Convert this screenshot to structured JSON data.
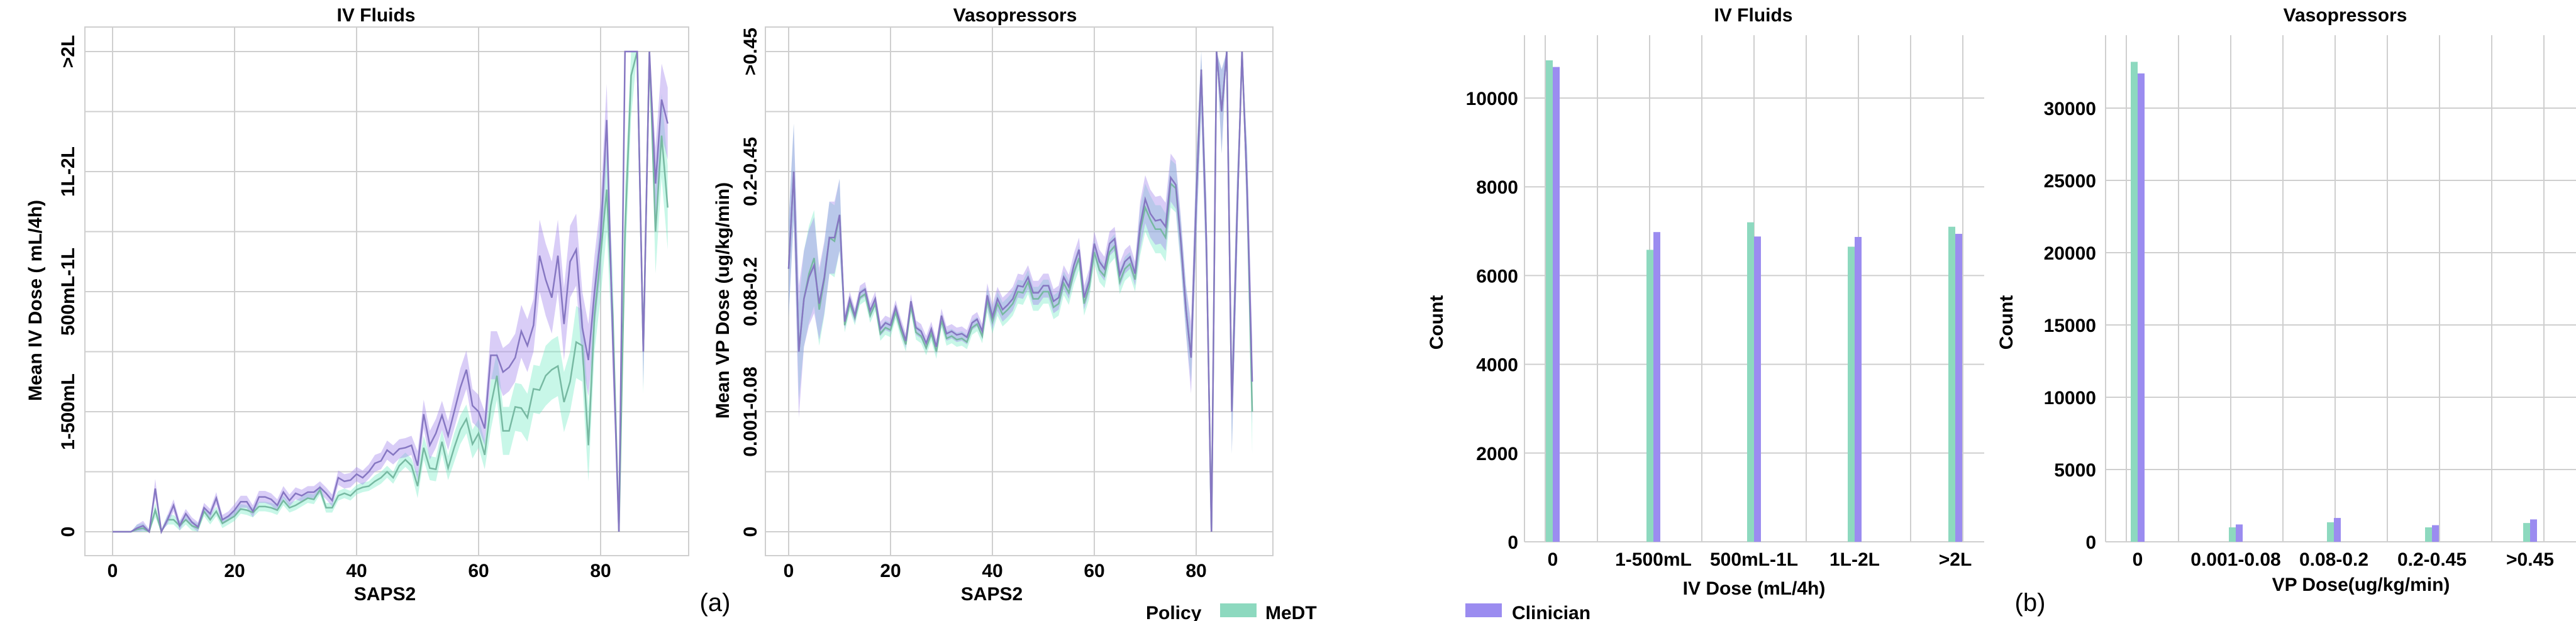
{
  "colors": {
    "medt_fill": "#8dd9bf",
    "medt_band": "rgba(110,235,195,0.38)",
    "medt_line": "#77b9a2",
    "clinician_fill": "#9b8cf0",
    "clinician_band": "rgba(165,135,235,0.42)",
    "clinician_line": "#8677c2",
    "grid": "#cfcfcf"
  },
  "legend": {
    "title": "Policy",
    "items": [
      {
        "name": "MeDT",
        "color": "#8dd9bf"
      },
      {
        "name": "Clinician",
        "color": "#9b8cf0"
      }
    ]
  },
  "panel_labels": {
    "a": "(a)",
    "b": "(b)"
  },
  "chart_data": [
    {
      "type": "line",
      "title": "IV Fluids",
      "xlabel": "SAPS2",
      "ylabel": "Mean IV Dose ( mL/4h)",
      "xlim": [
        -5,
        95
      ],
      "ylim": [
        -0.2,
        4.2
      ],
      "grid": true,
      "xticks": [
        0,
        20,
        40,
        60,
        80
      ],
      "yticks": [
        {
          "value": 0,
          "label": "0"
        },
        {
          "value": 1,
          "label": "1-500mL"
        },
        {
          "value": 2,
          "label": "500mL-1L"
        },
        {
          "value": 3,
          "label": "1L-2L"
        },
        {
          "value": 4,
          "label": ">2L"
        }
      ],
      "x_start": 0,
      "series": [
        {
          "name": "MeDT",
          "values": [
            0,
            0,
            0,
            0,
            0.02,
            0.03,
            0,
            0.18,
            0,
            0.1,
            0.1,
            0.05,
            0.1,
            0.05,
            0.03,
            0.17,
            0.1,
            0.17,
            0.07,
            0.1,
            0.13,
            0.19,
            0.18,
            0.16,
            0.21,
            0.21,
            0.2,
            0.18,
            0.26,
            0.2,
            0.22,
            0.25,
            0.28,
            0.27,
            0.35,
            0.2,
            0.2,
            0.3,
            0.32,
            0.3,
            0.35,
            0.37,
            0.38,
            0.42,
            0.45,
            0.5,
            0.45,
            0.55,
            0.6,
            0.55,
            0.38,
            0.7,
            0.53,
            0.52,
            0.75,
            0.53,
            0.7,
            0.85,
            0.94,
            0.73,
            0.82,
            0.64,
            1.05,
            1.3,
            0.84,
            0.84,
            1.04,
            1.03,
            0.95,
            1.19,
            1.18,
            1.3,
            1.35,
            1.38,
            1.08,
            1.25,
            1.58,
            1.55,
            0.72,
            1.8,
            2.3,
            2.85,
            1.8,
            0,
            2.5,
            3.8,
            4,
            1.5,
            4,
            2.5,
            3.3,
            2.7
          ],
          "ci": [
            0,
            0,
            0,
            0,
            0.04,
            0.04,
            0.02,
            0.06,
            0.02,
            0.04,
            0.04,
            0.04,
            0.04,
            0.04,
            0.04,
            0.04,
            0.04,
            0.04,
            0.04,
            0.04,
            0.04,
            0.04,
            0.04,
            0.04,
            0.04,
            0.04,
            0.04,
            0.04,
            0.04,
            0.04,
            0.04,
            0.04,
            0.04,
            0.04,
            0.04,
            0.04,
            0.04,
            0.04,
            0.04,
            0.04,
            0.04,
            0.04,
            0.04,
            0.05,
            0.05,
            0.05,
            0.05,
            0.06,
            0.06,
            0.06,
            0.1,
            0.1,
            0.1,
            0.1,
            0.1,
            0.1,
            0.12,
            0.12,
            0.12,
            0.12,
            0.12,
            0.12,
            0.2,
            0.2,
            0.2,
            0.2,
            0.2,
            0.2,
            0.2,
            0.2,
            0.2,
            0.25,
            0.25,
            0.25,
            0.25,
            0.25,
            0.3,
            0.3,
            0.3,
            0.3,
            0.35,
            0.35,
            0.35,
            0,
            0.35,
            0.35,
            0,
            0.35,
            0,
            0.35,
            0.35,
            0.35
          ]
        },
        {
          "name": "Clinician",
          "values": [
            0,
            0,
            0,
            0,
            0.03,
            0.05,
            0,
            0.36,
            0,
            0.1,
            0.22,
            0.05,
            0.15,
            0.08,
            0.04,
            0.2,
            0.15,
            0.28,
            0.1,
            0.13,
            0.18,
            0.25,
            0.25,
            0.17,
            0.29,
            0.29,
            0.27,
            0.22,
            0.33,
            0.26,
            0.32,
            0.3,
            0.33,
            0.33,
            0.37,
            0.32,
            0.26,
            0.45,
            0.42,
            0.43,
            0.48,
            0.45,
            0.5,
            0.57,
            0.59,
            0.68,
            0.64,
            0.69,
            0.7,
            0.72,
            0.55,
            0.98,
            0.72,
            0.82,
            0.97,
            0.8,
            1.0,
            1.2,
            1.35,
            1.05,
            1.0,
            0.86,
            1.47,
            1.47,
            1.33,
            1.37,
            1.45,
            1.67,
            1.55,
            1.72,
            2.3,
            2.1,
            1.95,
            2.3,
            1.73,
            2.25,
            2.35,
            1.7,
            1.43,
            2.0,
            2.45,
            3.43,
            1.6,
            0,
            4,
            4,
            4,
            1.5,
            4,
            2.9,
            3.6,
            3.4
          ],
          "ci": [
            0,
            0,
            0,
            0,
            0.03,
            0.04,
            0.02,
            0.08,
            0.02,
            0.04,
            0.05,
            0.04,
            0.04,
            0.04,
            0.04,
            0.04,
            0.04,
            0.05,
            0.04,
            0.04,
            0.05,
            0.05,
            0.05,
            0.05,
            0.05,
            0.05,
            0.05,
            0.05,
            0.05,
            0.05,
            0.05,
            0.05,
            0.05,
            0.05,
            0.05,
            0.05,
            0.05,
            0.06,
            0.06,
            0.06,
            0.06,
            0.06,
            0.06,
            0.07,
            0.07,
            0.08,
            0.08,
            0.08,
            0.08,
            0.08,
            0.12,
            0.12,
            0.12,
            0.12,
            0.12,
            0.12,
            0.14,
            0.16,
            0.16,
            0.14,
            0.14,
            0.14,
            0.2,
            0.2,
            0.2,
            0.2,
            0.2,
            0.22,
            0.22,
            0.22,
            0.3,
            0.3,
            0.3,
            0.3,
            0.3,
            0.3,
            0.3,
            0.3,
            0.3,
            0.3,
            0.3,
            0.3,
            0.3,
            0,
            0,
            0,
            0,
            0.3,
            0,
            0.3,
            0.3,
            0.3
          ]
        }
      ]
    },
    {
      "type": "line",
      "title": "Vasopressors",
      "xlabel": "SAPS2",
      "ylabel": "Mean VP Dose (ug/kg/min)",
      "xlim": [
        -5,
        95
      ],
      "ylim": [
        -0.2,
        4.2
      ],
      "grid": true,
      "xticks": [
        0,
        20,
        40,
        60,
        80
      ],
      "yticks": [
        {
          "value": 0,
          "label": "0"
        },
        {
          "value": 1,
          "label": "0.001-0.08"
        },
        {
          "value": 2,
          "label": "0.08-0.2"
        },
        {
          "value": 3,
          "label": "0.2-0.45"
        },
        {
          "value": 4,
          "label": ">0.45"
        }
      ],
      "x_start": 0,
      "series": [
        {
          "name": "MeDT",
          "values": [
            2.19,
            3.0,
            1.5,
            1.94,
            2.15,
            2.28,
            1.85,
            2.1,
            2.45,
            2.42,
            2.64,
            1.72,
            1.9,
            1.78,
            1.95,
            1.98,
            1.8,
            1.9,
            1.65,
            1.7,
            1.68,
            1.83,
            1.68,
            1.56,
            1.88,
            1.66,
            1.63,
            1.53,
            1.65,
            1.5,
            1.76,
            1.61,
            1.63,
            1.6,
            1.61,
            1.58,
            1.7,
            1.73,
            1.63,
            1.93,
            1.75,
            1.9,
            1.81,
            1.85,
            1.9,
            2.0,
            1.99,
            2.08,
            1.94,
            1.94,
            2.0,
            2.0,
            1.87,
            1.9,
            2.07,
            1.99,
            2.16,
            2.28,
            1.9,
            2.04,
            2.33,
            2.18,
            2.13,
            2.33,
            2.38,
            2.08,
            2.19,
            2.23,
            2.1,
            2.5,
            2.7,
            2.6,
            2.52,
            2.52,
            2.45,
            2.9,
            2.86,
            2.4,
            1.85,
            1.45,
            2.75,
            3.85,
            2.42,
            0,
            4,
            3.5,
            4,
            1.0,
            2.59,
            4,
            2.85,
            1.0
          ],
          "ci": [
            0.4,
            0.4,
            0.4,
            0.4,
            0.4,
            0.4,
            0.3,
            0.3,
            0.3,
            0.3,
            0.3,
            0.06,
            0.06,
            0.06,
            0.06,
            0.06,
            0.06,
            0.06,
            0.06,
            0.06,
            0.06,
            0.06,
            0.06,
            0.06,
            0.06,
            0.06,
            0.06,
            0.06,
            0.06,
            0.06,
            0.06,
            0.06,
            0.06,
            0.06,
            0.06,
            0.06,
            0.06,
            0.06,
            0.06,
            0.1,
            0.1,
            0.1,
            0.1,
            0.1,
            0.1,
            0.1,
            0.1,
            0.1,
            0.1,
            0.1,
            0.1,
            0.1,
            0.1,
            0.1,
            0.1,
            0.1,
            0.1,
            0.1,
            0.1,
            0.1,
            0.1,
            0.1,
            0.1,
            0.1,
            0.1,
            0.1,
            0.1,
            0.1,
            0.1,
            0.2,
            0.2,
            0.2,
            0.2,
            0.2,
            0.2,
            0.2,
            0.2,
            0.2,
            0.2,
            0.2,
            0.35,
            0.35,
            0.35,
            0,
            0,
            0.35,
            0,
            0.35,
            0.35,
            0,
            0.35,
            0.35
          ]
        },
        {
          "name": "Clinician",
          "values": [
            2.19,
            3.0,
            1.5,
            1.94,
            2.12,
            2.22,
            1.9,
            2.12,
            2.45,
            2.45,
            2.64,
            1.75,
            1.94,
            1.8,
            1.99,
            2.02,
            1.84,
            1.94,
            1.69,
            1.74,
            1.72,
            1.87,
            1.72,
            1.59,
            1.92,
            1.7,
            1.67,
            1.57,
            1.69,
            1.54,
            1.8,
            1.65,
            1.67,
            1.64,
            1.65,
            1.62,
            1.74,
            1.77,
            1.67,
            1.97,
            1.79,
            1.94,
            1.85,
            1.89,
            1.94,
            2.05,
            2.04,
            2.12,
            1.99,
            1.99,
            2.05,
            2.05,
            1.92,
            1.95,
            2.12,
            2.04,
            2.22,
            2.35,
            1.95,
            2.09,
            2.4,
            2.25,
            2.19,
            2.4,
            2.44,
            2.14,
            2.25,
            2.29,
            2.15,
            2.55,
            2.77,
            2.65,
            2.59,
            2.6,
            2.54,
            2.95,
            2.89,
            2.42,
            1.85,
            1.45,
            2.75,
            3.85,
            2.42,
            0,
            4,
            3.5,
            4,
            1.0,
            2.59,
            4,
            2.85,
            1.25
          ],
          "ci": [
            0.4,
            0.4,
            0.55,
            0.4,
            0.4,
            0.4,
            0.3,
            0.3,
            0.3,
            0.3,
            0.3,
            0.06,
            0.06,
            0.06,
            0.06,
            0.06,
            0.06,
            0.06,
            0.06,
            0.06,
            0.06,
            0.06,
            0.06,
            0.06,
            0.06,
            0.06,
            0.06,
            0.06,
            0.06,
            0.06,
            0.06,
            0.06,
            0.06,
            0.06,
            0.06,
            0.06,
            0.06,
            0.06,
            0.06,
            0.1,
            0.1,
            0.1,
            0.1,
            0.1,
            0.1,
            0.1,
            0.1,
            0.1,
            0.1,
            0.1,
            0.1,
            0.1,
            0.1,
            0.1,
            0.1,
            0.1,
            0.1,
            0.1,
            0.1,
            0.1,
            0.1,
            0.1,
            0.1,
            0.1,
            0.1,
            0.1,
            0.1,
            0.1,
            0.1,
            0.2,
            0.2,
            0.2,
            0.2,
            0.2,
            0.2,
            0.2,
            0.2,
            0.2,
            0.2,
            0.3,
            0.35,
            0.35,
            0.35,
            0,
            0,
            0.35,
            0,
            0.35,
            0.35,
            0,
            0.35,
            0.35
          ]
        }
      ]
    },
    {
      "type": "bar",
      "title": "IV Fluids",
      "xlabel": "IV Dose (mL/4h)",
      "ylabel": "Count",
      "categories": [
        "0",
        "1-500mL",
        "500mL-1L",
        "1L-2L",
        ">2L"
      ],
      "yticks": [
        0,
        2000,
        4000,
        6000,
        8000,
        10000
      ],
      "ylim": [
        0,
        11400
      ],
      "grid": true,
      "series": [
        {
          "name": "MeDT",
          "values": [
            10850,
            6580,
            7200,
            6650,
            7100
          ]
        },
        {
          "name": "Clinician",
          "values": [
            10700,
            6980,
            6880,
            6870,
            6940
          ]
        }
      ]
    },
    {
      "type": "bar",
      "title": "Vasopressors",
      "xlabel": "VP Dose(ug/kg/min)",
      "ylabel": "Count",
      "categories": [
        "0",
        "0.001-0.08",
        "0.08-0.2",
        "0.2-0.45",
        ">0.45"
      ],
      "yticks": [
        0,
        5000,
        10000,
        15000,
        20000,
        25000,
        30000
      ],
      "ylim": [
        0,
        35000
      ],
      "grid": true,
      "series": [
        {
          "name": "MeDT",
          "values": [
            33200,
            1000,
            1350,
            1000,
            1300
          ]
        },
        {
          "name": "Clinician",
          "values": [
            32400,
            1200,
            1650,
            1150,
            1550
          ]
        }
      ]
    }
  ]
}
